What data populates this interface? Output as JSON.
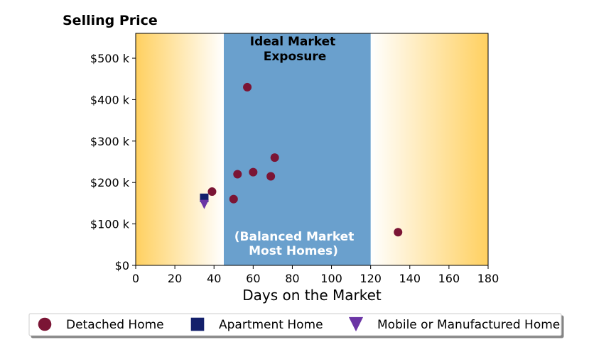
{
  "chart_data": {
    "type": "scatter",
    "title": "Selling Price",
    "xlabel": "Days on the Market",
    "ylabel": "",
    "xlim": [
      0,
      180
    ],
    "ylim": [
      0,
      560000
    ],
    "xticks": [
      0,
      20,
      40,
      60,
      80,
      100,
      120,
      140,
      160,
      180
    ],
    "xtick_labels": [
      "0",
      "20",
      "40",
      "60",
      "80",
      "100",
      "120",
      "140",
      "160",
      "180"
    ],
    "yticks": [
      0,
      100000,
      200000,
      300000,
      400000,
      500000
    ],
    "ytick_labels": [
      "$0",
      "$100 k",
      "$200 k",
      "$300 k",
      "$400 k",
      "$500 k"
    ],
    "grid": false,
    "legend_position": "bottom-center",
    "bands": [
      {
        "from": 45,
        "to": 120,
        "color": "#6aa0cd"
      }
    ],
    "edge_gradient_color": "#ffd060",
    "annotations": [
      {
        "lines": [
          "Ideal Market",
          "Exposure"
        ],
        "position": "top-center",
        "color": "#000000"
      },
      {
        "lines": [
          "(Balanced Market",
          "Most Homes)"
        ],
        "position": "bottom-center",
        "color": "#ffffff"
      }
    ],
    "series": [
      {
        "name": "Detached Home",
        "marker": "circle",
        "color": "#7b1535",
        "points": [
          {
            "x": 39,
            "y": 178000
          },
          {
            "x": 50,
            "y": 160000
          },
          {
            "x": 52,
            "y": 220000
          },
          {
            "x": 57,
            "y": 430000
          },
          {
            "x": 60,
            "y": 225000
          },
          {
            "x": 69,
            "y": 215000
          },
          {
            "x": 71,
            "y": 260000
          },
          {
            "x": 134,
            "y": 80000
          }
        ]
      },
      {
        "name": "Apartment Home",
        "marker": "square",
        "color": "#13206b",
        "points": [
          {
            "x": 35,
            "y": 163000
          }
        ]
      },
      {
        "name": "Mobile or Manufactured Home",
        "marker": "triangle-down",
        "color": "#6b35a5",
        "points": [
          {
            "x": 35,
            "y": 147000
          }
        ]
      }
    ]
  }
}
